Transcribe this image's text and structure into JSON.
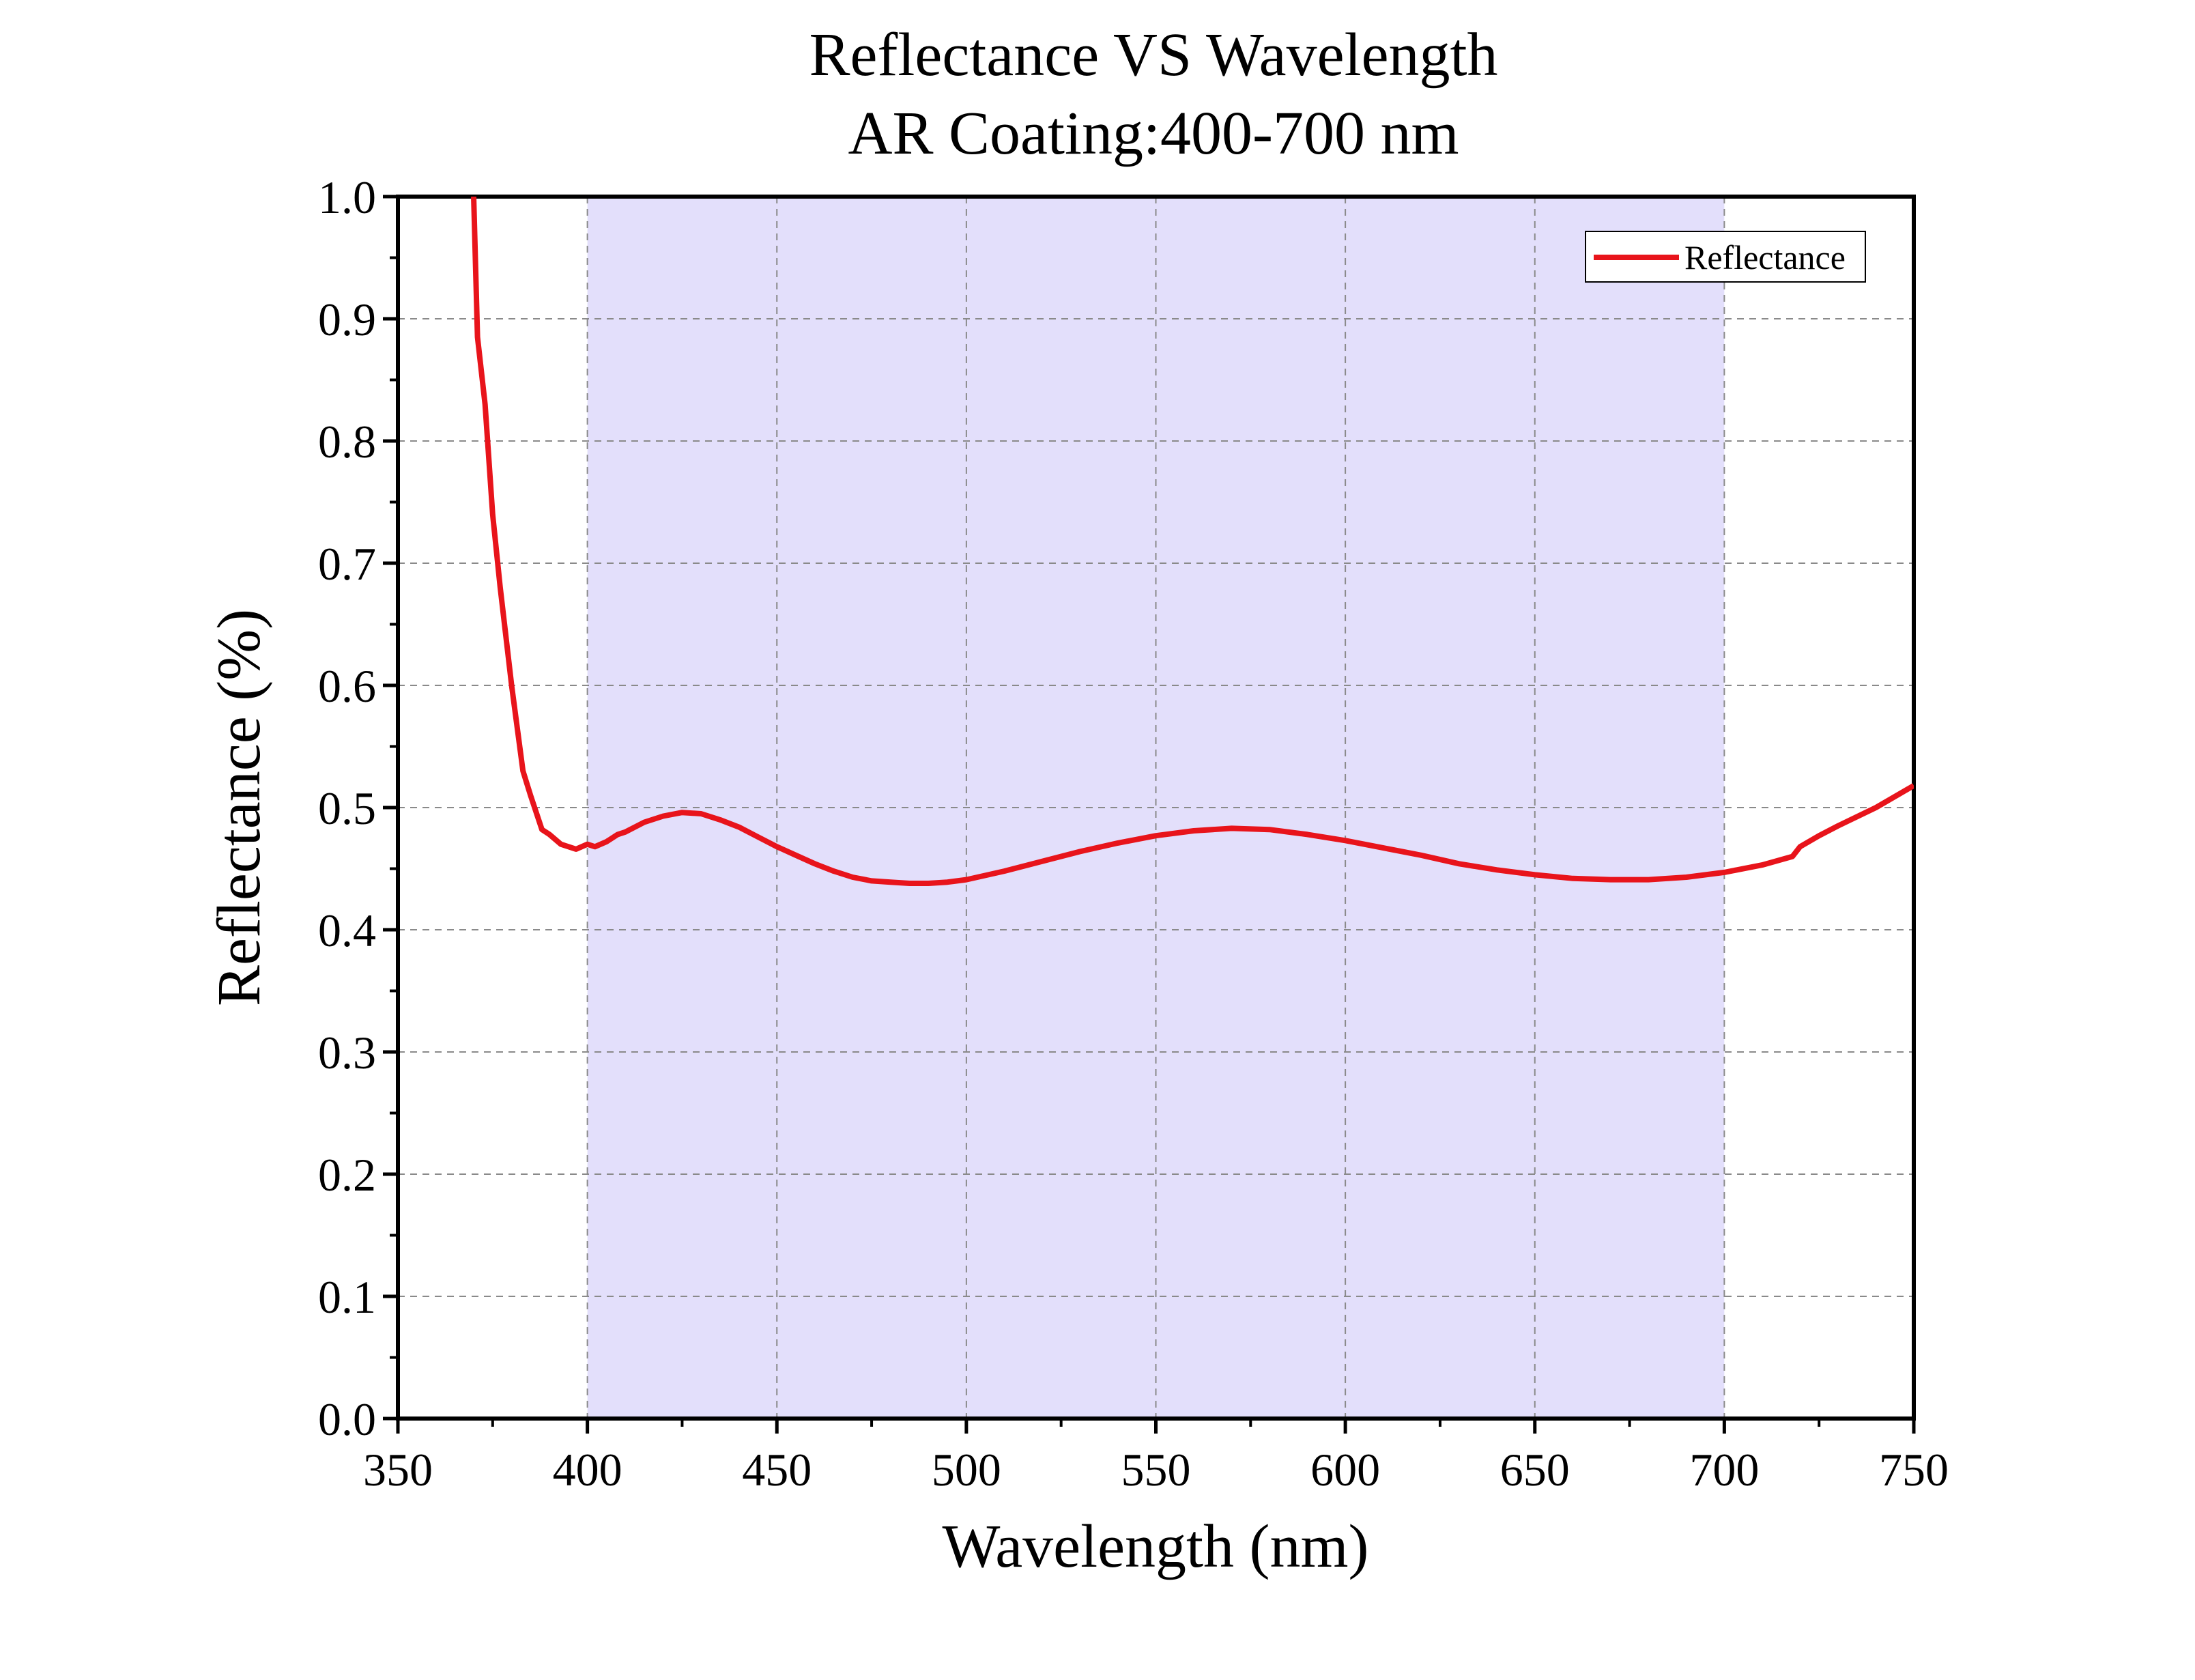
{
  "chart_data": {
    "type": "line",
    "title": "Reflectance VS Wavelength",
    "subtitle": "AR Coating:400-700 nm",
    "xlabel": "Wavelength (nm)",
    "ylabel": "Reflectance (%)",
    "xlim": [
      350,
      750
    ],
    "ylim": [
      0.0,
      1.0
    ],
    "xticks": [
      "350",
      "400",
      "450",
      "500",
      "550",
      "600",
      "650",
      "700",
      "750"
    ],
    "yticks": [
      "0.0",
      "0.1",
      "0.2",
      "0.3",
      "0.4",
      "0.5",
      "0.6",
      "0.7",
      "0.8",
      "0.9",
      "1.0"
    ],
    "grid": true,
    "legend_position": "top-right",
    "shaded_region": {
      "x_start": 400,
      "x_end": 700,
      "color": "#e3dffb"
    },
    "series": [
      {
        "name": "Reflectance",
        "color": "#e8141b",
        "x": [
          370,
          371,
          373,
          375,
          377,
          380,
          383,
          385,
          388,
          390,
          393,
          395,
          397,
          400,
          402,
          405,
          408,
          410,
          415,
          420,
          425,
          430,
          435,
          440,
          445,
          450,
          455,
          460,
          465,
          470,
          475,
          480,
          485,
          490,
          495,
          500,
          510,
          520,
          530,
          540,
          550,
          560,
          570,
          580,
          590,
          600,
          610,
          620,
          630,
          640,
          650,
          660,
          670,
          680,
          690,
          700,
          710,
          718,
          720,
          725,
          730,
          740,
          750
        ],
        "y": [
          1.0,
          0.885,
          0.83,
          0.74,
          0.68,
          0.6,
          0.53,
          0.51,
          0.482,
          0.478,
          0.47,
          0.468,
          0.466,
          0.47,
          0.468,
          0.472,
          0.478,
          0.48,
          0.488,
          0.493,
          0.496,
          0.495,
          0.49,
          0.484,
          0.476,
          0.468,
          0.461,
          0.454,
          0.448,
          0.443,
          0.44,
          0.439,
          0.438,
          0.438,
          0.439,
          0.441,
          0.448,
          0.456,
          0.464,
          0.471,
          0.477,
          0.481,
          0.483,
          0.482,
          0.478,
          0.473,
          0.467,
          0.461,
          0.454,
          0.449,
          0.445,
          0.442,
          0.441,
          0.441,
          0.443,
          0.447,
          0.453,
          0.46,
          0.468,
          0.477,
          0.485,
          0.5,
          0.518
        ]
      }
    ]
  }
}
